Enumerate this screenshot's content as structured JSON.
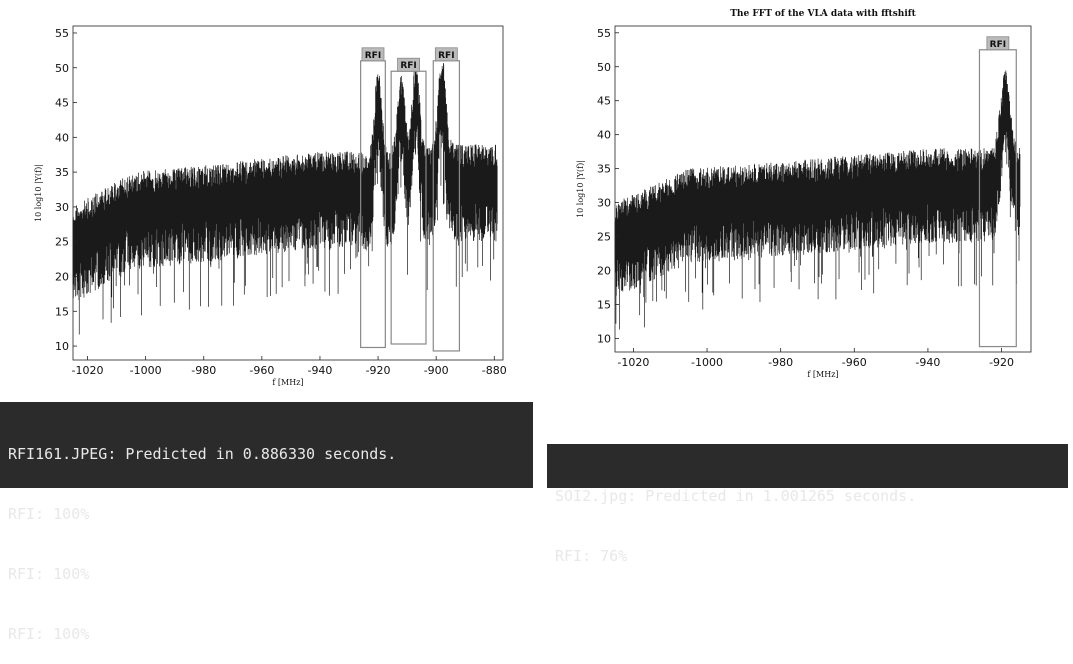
{
  "colors": {
    "trace": "#1a1a1a",
    "box": "#888888",
    "tag_fill": "#bbbbbb",
    "console_bg": "#2b2b2b"
  },
  "chart_data": [
    {
      "type": "line",
      "title": "",
      "xlabel": "f [MHz]",
      "ylabel": "10 log10 |Y(f)|",
      "xlim": [
        -1025,
        -877
      ],
      "ylim": [
        8,
        56
      ],
      "x_ticks": [
        -1020,
        -1000,
        -980,
        -960,
        -940,
        -920,
        -900,
        -880
      ],
      "y_ticks": [
        10,
        15,
        20,
        25,
        30,
        35,
        40,
        45,
        50,
        55
      ],
      "grid": false,
      "series_shape": {
        "x_range": [
          -1025,
          -879
        ],
        "baseline": [
          [
            -1025,
            25
          ],
          [
            -1005,
            30
          ],
          [
            -980,
            31
          ],
          [
            -960,
            32
          ],
          [
            -940,
            33
          ],
          [
            -926,
            33
          ],
          [
            -920,
            32
          ],
          [
            -912,
            34
          ],
          [
            -906,
            33
          ],
          [
            -900,
            34
          ],
          [
            -880,
            34
          ]
        ],
        "peaks": [
          [
            -920,
            45
          ],
          [
            -912,
            44
          ],
          [
            -907,
            46
          ],
          [
            -898,
            47
          ]
        ]
      },
      "rfi_boxes": [
        {
          "label": "RFI",
          "x0": -926,
          "x1": -917.5,
          "ytop": 51,
          "ybottom": 9.8
        },
        {
          "label": "RFI",
          "x0": -915.5,
          "x1": -903.5,
          "ytop": 49.5,
          "ybottom": 10.3
        },
        {
          "label": "RFI",
          "x0": -901,
          "x1": -892,
          "ytop": 51,
          "ybottom": 9.3
        }
      ]
    },
    {
      "type": "line",
      "title": "The FFT of the VLA data with fftshift",
      "xlabel": "f [MHz]",
      "ylabel": "10 log10 |Y(f)|",
      "xlim": [
        -1025,
        -912
      ],
      "ylim": [
        8,
        56
      ],
      "x_ticks": [
        -1020,
        -1000,
        -980,
        -960,
        -940,
        -920
      ],
      "y_ticks": [
        10,
        15,
        20,
        25,
        30,
        35,
        40,
        45,
        50,
        55
      ],
      "grid": false,
      "series_shape": {
        "x_range": [
          -1025,
          -915
        ],
        "baseline": [
          [
            -1025,
            25
          ],
          [
            -1005,
            30
          ],
          [
            -980,
            31
          ],
          [
            -960,
            32
          ],
          [
            -940,
            33
          ],
          [
            -926,
            33
          ],
          [
            -915,
            33
          ]
        ],
        "peaks": [
          [
            -919,
            45
          ]
        ]
      },
      "rfi_boxes": [
        {
          "label": "RFI",
          "x0": -926,
          "x1": -916,
          "ytop": 52.5,
          "ybottom": 8.8
        }
      ]
    }
  ],
  "console_left": {
    "lines": [
      "RFI161.JPEG: Predicted in 0.886330 seconds.",
      "RFI: 100%",
      "RFI: 100%",
      "RFI: 100%"
    ]
  },
  "console_right": {
    "lines": [
      "SOI2.jpg: Predicted in 1.001265 seconds.",
      "RFI: 76%"
    ]
  }
}
